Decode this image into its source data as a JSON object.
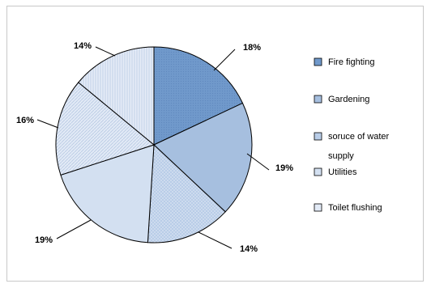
{
  "chart_data": {
    "type": "pie",
    "title": "",
    "start_angle_deg": 0,
    "direction": "clockwise",
    "slices": [
      {
        "label": "Fire fighting",
        "value": 18,
        "display": "18%",
        "color": "#7099cb",
        "pattern": "dots-dense"
      },
      {
        "label": "Gardening",
        "value": 19,
        "display": "19%",
        "color": "#a6bfdf",
        "pattern": "none"
      },
      {
        "label": "soruce of water supply",
        "value": 14,
        "display": "14%",
        "color": "#b9cde8",
        "pattern": "dots"
      },
      {
        "label": "Utilities",
        "value": 19,
        "display": "19%",
        "color": "#d3e0f1",
        "pattern": "none"
      },
      {
        "label": "Toilet flushing",
        "value": 16,
        "display": "16%",
        "color": "#e2eaf6",
        "pattern": "lines"
      },
      {
        "label": "",
        "value": 14,
        "display": "14%",
        "color": "#e6ecf7",
        "pattern": "vlines"
      }
    ],
    "legend": {
      "placement": "right",
      "items": [
        {
          "label_lines": [
            "Fire fighting"
          ],
          "color": "#7099cb"
        },
        {
          "label_lines": [
            "Gardening"
          ],
          "color": "#a6bfdf"
        },
        {
          "label_lines": [
            "soruce of water",
            "supply"
          ],
          "color": "#b9cde8"
        },
        {
          "label_lines": [
            "Utilities"
          ],
          "color": "#d3e0f1"
        },
        {
          "label_lines": [
            "Toilet flushing"
          ],
          "color": "#e2eaf6"
        }
      ]
    }
  }
}
